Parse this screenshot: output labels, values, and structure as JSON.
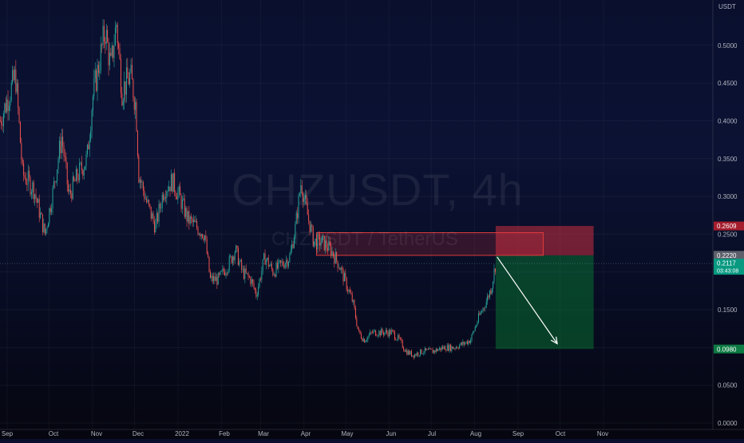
{
  "chart_data": {
    "type": "candlestick",
    "symbol": "CHZUSDT, 4h",
    "subtitle": "CHZUSDT / TetherUS",
    "currency_label": "USDT",
    "y_axis": {
      "ylim": [
        0,
        0.56
      ],
      "ticks": [
        "0.5000",
        "0.4500",
        "0.4000",
        "0.3500",
        "0.3000",
        "0.2500",
        "0.2000",
        "0.1500",
        "0.1000",
        "0.0500",
        "0.0000"
      ],
      "tick_values": [
        0.5,
        0.45,
        0.4,
        0.35,
        0.3,
        0.25,
        0.2,
        0.15,
        0.1,
        0.05,
        0.0
      ]
    },
    "x_axis": {
      "ticks": [
        "Sep",
        "Oct",
        "Nov",
        "Dec",
        "2022",
        "Feb",
        "Mar",
        "Apr",
        "May",
        "Jun",
        "Jul",
        "Aug",
        "Sep",
        "Oct",
        "Nov"
      ]
    },
    "price_path": [
      [
        "2021-08-27",
        0.4
      ],
      [
        "2021-09-07",
        0.46
      ],
      [
        "2021-09-12",
        0.33
      ],
      [
        "2021-09-20",
        0.31
      ],
      [
        "2021-09-28",
        0.25
      ],
      [
        "2021-10-04",
        0.31
      ],
      [
        "2021-10-10",
        0.38
      ],
      [
        "2021-10-15",
        0.3
      ],
      [
        "2021-10-22",
        0.33
      ],
      [
        "2021-10-28",
        0.35
      ],
      [
        "2021-11-01",
        0.43
      ],
      [
        "2021-11-06",
        0.48
      ],
      [
        "2021-11-10",
        0.52
      ],
      [
        "2021-11-14",
        0.47
      ],
      [
        "2021-11-18",
        0.53
      ],
      [
        "2021-11-22",
        0.44
      ],
      [
        "2021-11-28",
        0.46
      ],
      [
        "2021-12-02",
        0.42
      ],
      [
        "2021-12-04",
        0.33
      ],
      [
        "2021-12-10",
        0.29
      ],
      [
        "2021-12-16",
        0.26
      ],
      [
        "2021-12-22",
        0.31
      ],
      [
        "2021-12-28",
        0.32
      ],
      [
        "2022-01-02",
        0.3
      ],
      [
        "2022-01-08",
        0.27
      ],
      [
        "2022-01-14",
        0.26
      ],
      [
        "2022-01-20",
        0.25
      ],
      [
        "2022-01-24",
        0.19
      ],
      [
        "2022-01-30",
        0.19
      ],
      [
        "2022-02-06",
        0.21
      ],
      [
        "2022-02-11",
        0.23
      ],
      [
        "2022-02-16",
        0.2
      ],
      [
        "2022-02-22",
        0.19
      ],
      [
        "2022-02-26",
        0.17
      ],
      [
        "2022-03-04",
        0.22
      ],
      [
        "2022-03-10",
        0.2
      ],
      [
        "2022-03-16",
        0.21
      ],
      [
        "2022-03-22",
        0.22
      ],
      [
        "2022-03-26",
        0.26
      ],
      [
        "2022-03-30",
        0.32
      ],
      [
        "2022-04-03",
        0.28
      ],
      [
        "2022-04-08",
        0.24
      ],
      [
        "2022-04-14",
        0.24
      ],
      [
        "2022-04-20",
        0.23
      ],
      [
        "2022-04-26",
        0.21
      ],
      [
        "2022-05-02",
        0.18
      ],
      [
        "2022-05-06",
        0.16
      ],
      [
        "2022-05-10",
        0.12
      ],
      [
        "2022-05-14",
        0.11
      ],
      [
        "2022-05-20",
        0.12
      ],
      [
        "2022-05-27",
        0.12
      ],
      [
        "2022-06-03",
        0.12
      ],
      [
        "2022-06-08",
        0.11
      ],
      [
        "2022-06-13",
        0.095
      ],
      [
        "2022-06-18",
        0.09
      ],
      [
        "2022-06-25",
        0.095
      ],
      [
        "2022-07-02",
        0.095
      ],
      [
        "2022-07-10",
        0.1
      ],
      [
        "2022-07-17",
        0.1
      ],
      [
        "2022-07-24",
        0.105
      ],
      [
        "2022-07-29",
        0.11
      ],
      [
        "2022-08-04",
        0.14
      ],
      [
        "2022-08-09",
        0.16
      ],
      [
        "2022-08-13",
        0.18
      ],
      [
        "2022-08-16",
        0.2117
      ]
    ],
    "annotations": {
      "resistance_zone": {
        "from": "2022-04-10",
        "to": "2022-09-19",
        "low": 0.222,
        "high": 0.252
      },
      "short_position": {
        "from": "2022-08-16",
        "to": "2022-10-25",
        "entry": 0.222,
        "stop": 0.2609,
        "target": 0.098,
        "entry_label": "0.2220",
        "stop_label": "0.2609",
        "target_label": "0.0980"
      },
      "arrow": {
        "from_date": "2022-08-17",
        "from_price": 0.22,
        "to_date": "2022-09-29",
        "to_price": 0.105
      },
      "last_price": {
        "value": 0.2117,
        "label": "0.2117",
        "countdown": "03:43:08"
      }
    }
  }
}
